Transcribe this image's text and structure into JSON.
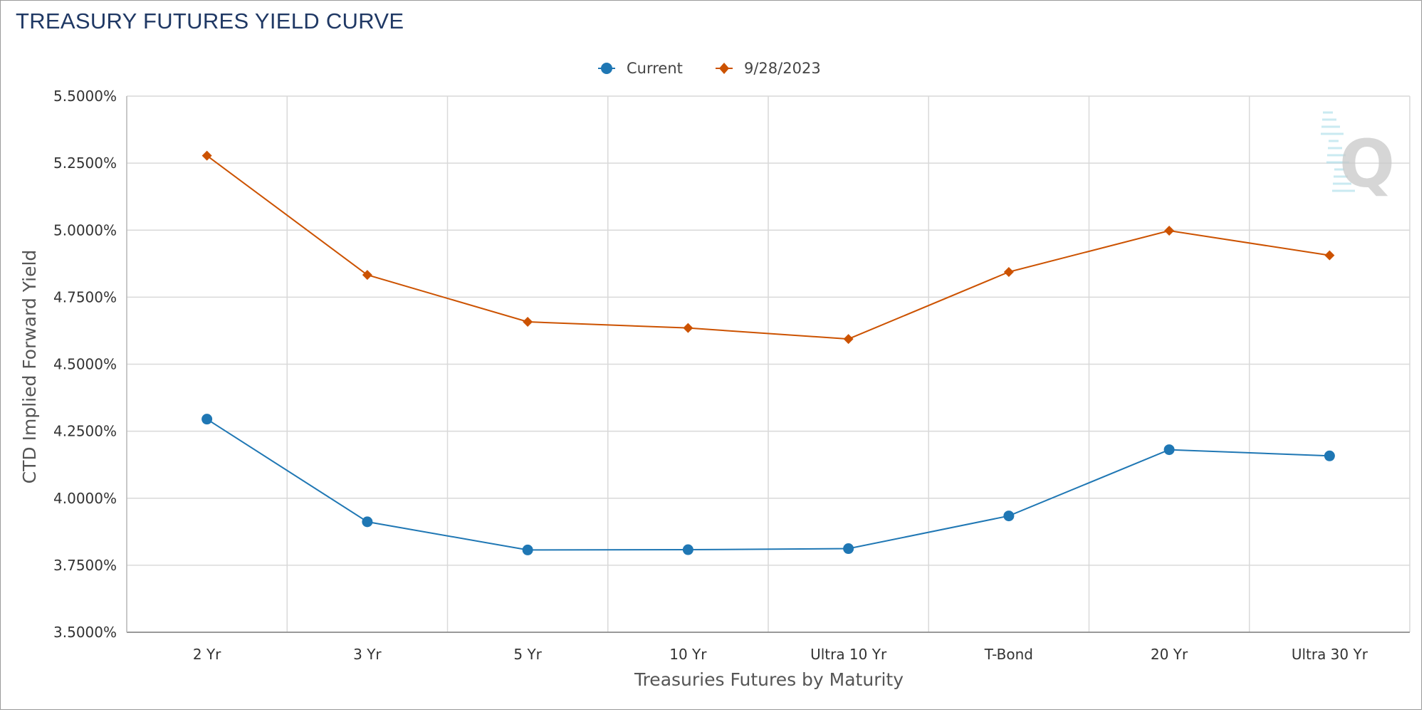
{
  "page": {
    "title": "TREASURY FUTURES YIELD CURVE"
  },
  "colors": {
    "current": "#1f77b4",
    "previous": "#cc5200",
    "title": "#1f3864",
    "grid": "#d9d9d9"
  },
  "watermark": {
    "icon": "q-logo-icon",
    "letter": "Q"
  },
  "chart_data": {
    "type": "line",
    "title": "TREASURY FUTURES YIELD CURVE",
    "xlabel": "Treasuries Futures by Maturity",
    "ylabel": "CTD Implied Forward Yield",
    "categories": [
      "2 Yr",
      "3 Yr",
      "5 Yr",
      "10 Yr",
      "Ultra 10 Yr",
      "T-Bond",
      "20 Yr",
      "Ultra 30 Yr"
    ],
    "yticks": [
      "3.5000%",
      "3.7500%",
      "4.0000%",
      "4.2500%",
      "4.5000%",
      "4.7500%",
      "5.0000%",
      "5.2500%",
      "5.5000%"
    ],
    "ylim": [
      3.5,
      5.5
    ],
    "grid": true,
    "legend_position": "top-center",
    "series": [
      {
        "name": "Current",
        "marker": "circle",
        "color": "#1f77b4",
        "values": [
          4.295,
          3.912,
          3.807,
          3.808,
          3.812,
          3.934,
          4.181,
          4.158
        ]
      },
      {
        "name": "9/28/2023",
        "marker": "diamond",
        "color": "#cc5200",
        "values": [
          5.278,
          4.833,
          4.658,
          4.635,
          4.594,
          4.844,
          4.998,
          4.906
        ]
      }
    ]
  }
}
